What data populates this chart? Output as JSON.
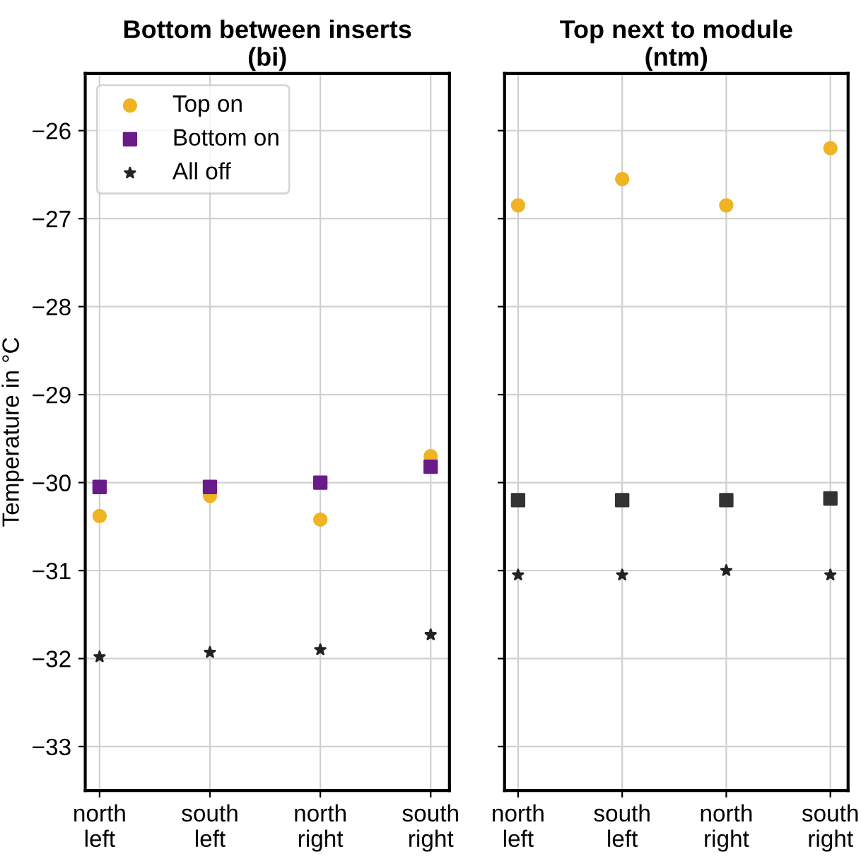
{
  "chart_data": [
    {
      "type": "scatter",
      "title": "Bottom between inserts\n(bi)",
      "ylabel": "Temperature in °C",
      "categories": [
        "north\nleft",
        "south\nleft",
        "north\nright",
        "south\nright"
      ],
      "ylim": [
        -33.5,
        -25.35
      ],
      "yticks": [
        {
          "value": -33,
          "label": "−33"
        },
        {
          "value": -32,
          "label": "−32"
        },
        {
          "value": -31,
          "label": "−31"
        },
        {
          "value": -30,
          "label": "−30"
        },
        {
          "value": -29,
          "label": "−29"
        },
        {
          "value": -28,
          "label": "−28"
        },
        {
          "value": -27,
          "label": "−27"
        },
        {
          "value": -26,
          "label": "−26"
        }
      ],
      "grid": true,
      "legend": "top left",
      "series": [
        {
          "name": "Top on",
          "color": "#f0b323",
          "marker": "circle",
          "values": [
            -30.38,
            -30.15,
            -30.42,
            -29.7
          ]
        },
        {
          "name": "Bottom on",
          "color": "#6a1b8a",
          "marker": "square",
          "values": [
            -30.05,
            -30.05,
            -30.0,
            -29.82
          ]
        },
        {
          "name": "All off",
          "color": "#222222",
          "marker": "star",
          "values": [
            -31.98,
            -31.93,
            -31.9,
            -31.73
          ]
        }
      ]
    },
    {
      "type": "scatter",
      "title": "Top next to module\n(ntm)",
      "categories": [
        "north\nleft",
        "south\nleft",
        "north\nright",
        "south\nright"
      ],
      "ylim": [
        -33.5,
        -25.35
      ],
      "yticks": [
        {
          "value": -33,
          "label": null
        },
        {
          "value": -32,
          "label": null
        },
        {
          "value": -31,
          "label": null
        },
        {
          "value": -30,
          "label": null
        },
        {
          "value": -29,
          "label": null
        },
        {
          "value": -28,
          "label": null
        },
        {
          "value": -27,
          "label": null
        },
        {
          "value": -26,
          "label": null
        }
      ],
      "grid": true,
      "tick_labels": "x",
      "series": [
        {
          "color": "#f0b323",
          "marker": "circle",
          "values": [
            -26.85,
            -26.55,
            -26.85,
            -26.2
          ]
        },
        {
          "color": "#333333",
          "marker": "square",
          "values": [
            -30.2,
            -30.2,
            -30.2,
            -30.18
          ]
        },
        {
          "color": "#222222",
          "marker": "star",
          "values": [
            -31.05,
            -31.05,
            -31.0,
            -31.05
          ]
        }
      ]
    }
  ]
}
